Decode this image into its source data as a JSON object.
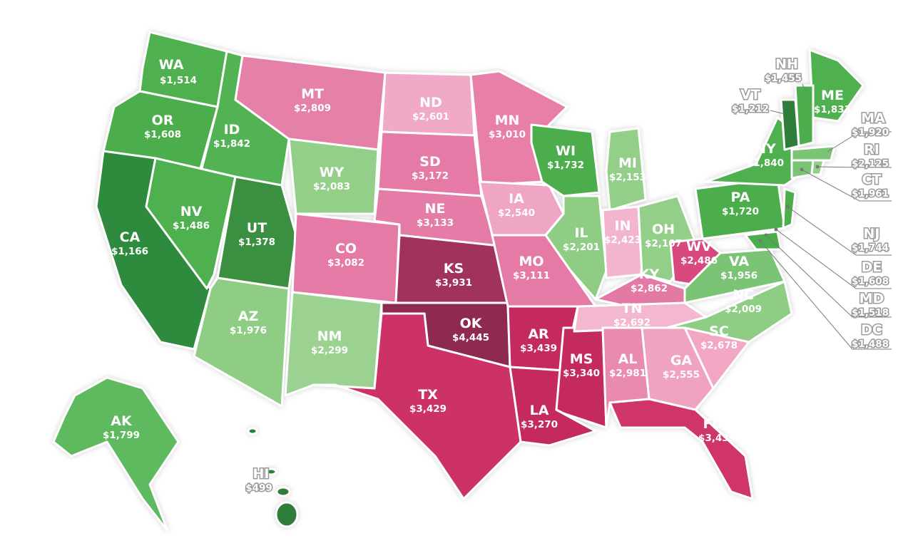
{
  "map": {
    "states": [
      {
        "abbr": "WA",
        "value": "$1,514",
        "color": "#4fb04f"
      },
      {
        "abbr": "OR",
        "value": "$1,608",
        "color": "#4cad4c"
      },
      {
        "abbr": "CA",
        "value": "$1,166",
        "color": "#2e8b3e"
      },
      {
        "abbr": "ID",
        "value": "$1,842",
        "color": "#52b252"
      },
      {
        "abbr": "NV",
        "value": "$1,486",
        "color": "#4fb04f"
      },
      {
        "abbr": "UT",
        "value": "$1,378",
        "color": "#3a8f3f"
      },
      {
        "abbr": "AZ",
        "value": "$1,976",
        "color": "#8fcd85"
      },
      {
        "abbr": "MT",
        "value": "$2,809",
        "color": "#e580a9"
      },
      {
        "abbr": "WY",
        "value": "$2,083",
        "color": "#93cf89"
      },
      {
        "abbr": "CO",
        "value": "$3,082",
        "color": "#e57aa6"
      },
      {
        "abbr": "NM",
        "value": "$2,299",
        "color": "#9bd292"
      },
      {
        "abbr": "ND",
        "value": "$2,601",
        "color": "#f0a9c6"
      },
      {
        "abbr": "SD",
        "value": "$3,172",
        "color": "#e67aa6"
      },
      {
        "abbr": "NE",
        "value": "$3,133",
        "color": "#e57ca7"
      },
      {
        "abbr": "KS",
        "value": "$3,931",
        "color": "#a0315c"
      },
      {
        "abbr": "OK",
        "value": "$4,445",
        "color": "#8e2a50"
      },
      {
        "abbr": "TX",
        "value": "$3,429",
        "color": "#cc3267"
      },
      {
        "abbr": "MN",
        "value": "$3,010",
        "color": "#e77fa9"
      },
      {
        "abbr": "IA",
        "value": "$2,540",
        "color": "#efa6c4"
      },
      {
        "abbr": "MO",
        "value": "$3,111",
        "color": "#e57aa6"
      },
      {
        "abbr": "AR",
        "value": "$3,439",
        "color": "#c42c5f"
      },
      {
        "abbr": "LA",
        "value": "$3,270",
        "color": "#c42c5f"
      },
      {
        "abbr": "WI",
        "value": "$1,732",
        "color": "#4cad4c"
      },
      {
        "abbr": "IL",
        "value": "$2,201",
        "color": "#8fcd85"
      },
      {
        "abbr": "MS",
        "value": "$3,340",
        "color": "#c42c5f"
      },
      {
        "abbr": "MI",
        "value": "$2,153",
        "color": "#93cf89"
      },
      {
        "abbr": "IN",
        "value": "$2,423",
        "color": "#f2b5cd"
      },
      {
        "abbr": "KY",
        "value": "$2,862",
        "color": "#e27aa5"
      },
      {
        "abbr": "TN",
        "value": "$2,692",
        "color": "#f3b8cf"
      },
      {
        "abbr": "AL",
        "value": "$2,981",
        "color": "#e98aaf"
      },
      {
        "abbr": "OH",
        "value": "$2,107",
        "color": "#93cf89"
      },
      {
        "abbr": "WV",
        "value": "$2,486",
        "color": "#d9497f"
      },
      {
        "abbr": "VA",
        "value": "$1,956",
        "color": "#7cc474"
      },
      {
        "abbr": "NC",
        "value": "$2,009",
        "color": "#8fcd85"
      },
      {
        "abbr": "SC",
        "value": "$2,678",
        "color": "#f2a7c4"
      },
      {
        "abbr": "GA",
        "value": "$2,555",
        "color": "#f0a2c1"
      },
      {
        "abbr": "FL",
        "value": "$3,439",
        "color": "#cf3468"
      },
      {
        "abbr": "PA",
        "value": "$1,720",
        "color": "#4cad4c"
      },
      {
        "abbr": "NY",
        "value": "$1,840",
        "color": "#4fb04f"
      },
      {
        "abbr": "ME",
        "value": "$1,833",
        "color": "#4fb04f"
      },
      {
        "abbr": "AK",
        "value": "$1,799",
        "color": "#5eb95e"
      },
      {
        "abbr": "HI",
        "value": "$499",
        "color": "#2e7d3a"
      }
    ],
    "external_labels": [
      {
        "abbr": "NH",
        "value": "$1,455",
        "color": "#4cad4c"
      },
      {
        "abbr": "VT",
        "value": "$1,212",
        "color": "#2e7d3a"
      },
      {
        "abbr": "MA",
        "value": "$1,920",
        "color": "#7cc474"
      },
      {
        "abbr": "RI",
        "value": "$2,125",
        "color": "#93cf89"
      },
      {
        "abbr": "CT",
        "value": "$1,961",
        "color": "#7cc474"
      },
      {
        "abbr": "NJ",
        "value": "$1,744",
        "color": "#4cad4c"
      },
      {
        "abbr": "DE",
        "value": "$1,608",
        "color": "#4cad4c"
      },
      {
        "abbr": "MD",
        "value": "$1,518",
        "color": "#4cad4c"
      },
      {
        "abbr": "DC",
        "value": "$1,488",
        "color": "#4cad4c"
      }
    ]
  }
}
